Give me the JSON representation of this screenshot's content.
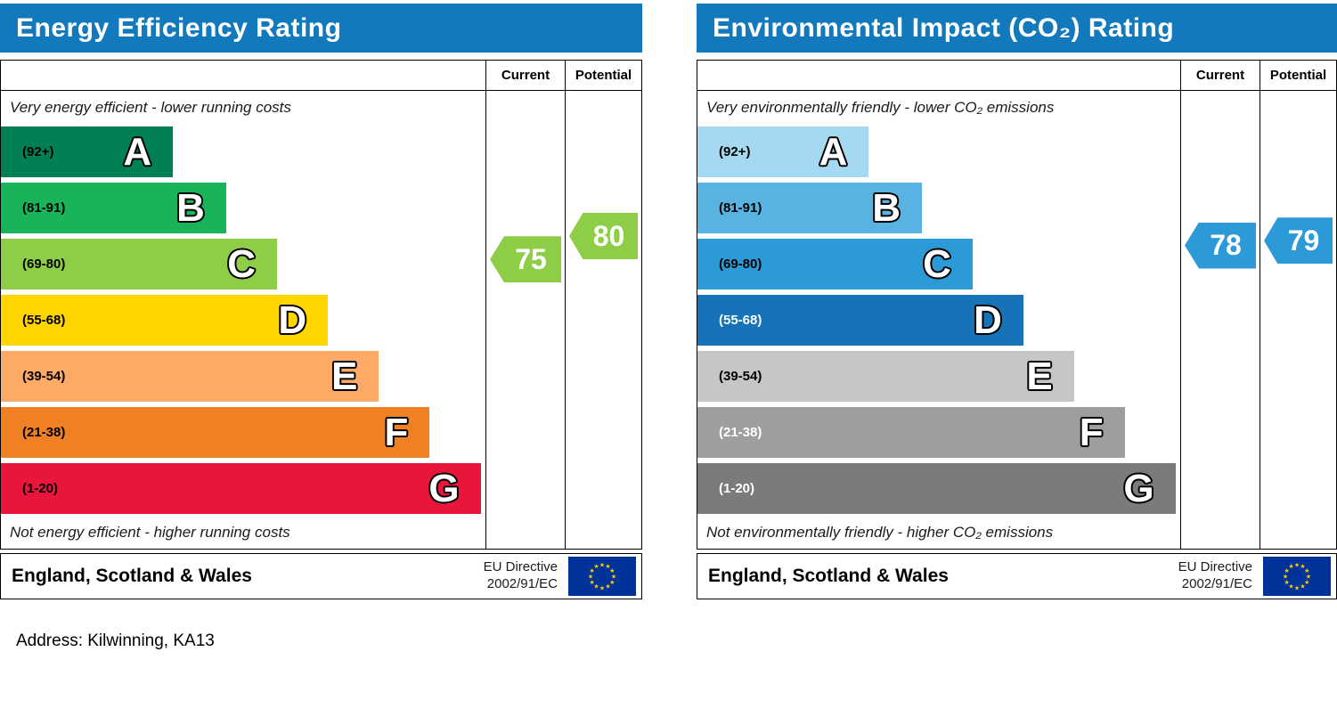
{
  "address_line": "Address: Kilwinning, KA13",
  "colors": {
    "title_bar": "#1379bd",
    "border": "#000000",
    "eu_flag_blue": "#003399",
    "eu_flag_star": "#ffcc00"
  },
  "chart_data": [
    {
      "type": "bar",
      "title": "Energy Efficiency Rating",
      "top_note": "Very energy efficient - lower running costs",
      "bottom_note": "Not energy efficient - higher running costs",
      "columns": [
        "Current",
        "Potential"
      ],
      "current": {
        "value": 75,
        "color": "#8dce46"
      },
      "potential": {
        "value": 80,
        "color": "#8dce46"
      },
      "bands": [
        {
          "range": "(92+)",
          "letter": "A",
          "min": 92,
          "max": 100,
          "width_pct": 35.5,
          "color": "#008054",
          "label_color": "#000000"
        },
        {
          "range": "(81-91)",
          "letter": "B",
          "min": 81,
          "max": 91,
          "width_pct": 46.5,
          "color": "#19b459",
          "label_color": "#000000"
        },
        {
          "range": "(69-80)",
          "letter": "C",
          "min": 69,
          "max": 80,
          "width_pct": 57,
          "color": "#8dce46",
          "label_color": "#000000"
        },
        {
          "range": "(55-68)",
          "letter": "D",
          "min": 55,
          "max": 68,
          "width_pct": 67.5,
          "color": "#ffd500",
          "label_color": "#000000"
        },
        {
          "range": "(39-54)",
          "letter": "E",
          "min": 39,
          "max": 54,
          "width_pct": 78,
          "color": "#fcaa65",
          "label_color": "#000000"
        },
        {
          "range": "(21-38)",
          "letter": "F",
          "min": 21,
          "max": 38,
          "width_pct": 88.5,
          "color": "#ef8023",
          "label_color": "#000000"
        },
        {
          "range": "(1-20)",
          "letter": "G",
          "min": 1,
          "max": 20,
          "width_pct": 99,
          "color": "#e9153b",
          "label_color": "#000000"
        }
      ],
      "footer_region": "England, Scotland & Wales",
      "footer_directive_line1": "EU Directive",
      "footer_directive_line2": "2002/91/EC"
    },
    {
      "type": "bar",
      "title": "Environmental Impact (CO₂) Rating",
      "top_note": "Very environmentally friendly - lower CO₂ emissions",
      "bottom_note": "Not environmentally friendly - higher CO₂ emissions",
      "columns": [
        "Current",
        "Potential"
      ],
      "current": {
        "value": 78,
        "color": "#2b9ad6"
      },
      "potential": {
        "value": 79,
        "color": "#2b9ad6"
      },
      "bands": [
        {
          "range": "(92+)",
          "letter": "A",
          "min": 92,
          "max": 100,
          "width_pct": 35.5,
          "color": "#a5d9f2",
          "label_color": "#000000"
        },
        {
          "range": "(81-91)",
          "letter": "B",
          "min": 81,
          "max": 91,
          "width_pct": 46.5,
          "color": "#58b2e2",
          "label_color": "#000000"
        },
        {
          "range": "(69-80)",
          "letter": "C",
          "min": 69,
          "max": 80,
          "width_pct": 57,
          "color": "#2b9ad6",
          "label_color": "#000000"
        },
        {
          "range": "(55-68)",
          "letter": "D",
          "min": 55,
          "max": 68,
          "width_pct": 67.5,
          "color": "#1673b8",
          "label_color": "#ffffff"
        },
        {
          "range": "(39-54)",
          "letter": "E",
          "min": 39,
          "max": 54,
          "width_pct": 78,
          "color": "#c6c6c6",
          "label_color": "#000000"
        },
        {
          "range": "(21-38)",
          "letter": "F",
          "min": 21,
          "max": 38,
          "width_pct": 88.5,
          "color": "#9e9e9e",
          "label_color": "#ffffff"
        },
        {
          "range": "(1-20)",
          "letter": "G",
          "min": 1,
          "max": 20,
          "width_pct": 99,
          "color": "#7b7b7b",
          "label_color": "#ffffff"
        }
      ],
      "footer_region": "England, Scotland & Wales",
      "footer_directive_line1": "EU Directive",
      "footer_directive_line2": "2002/91/EC"
    }
  ]
}
